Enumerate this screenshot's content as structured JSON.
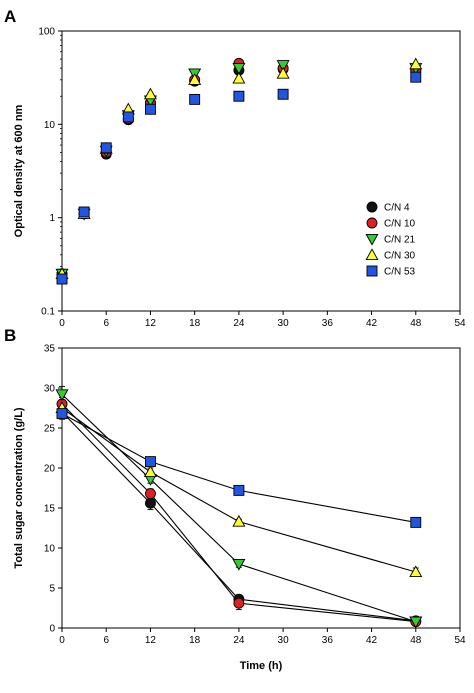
{
  "chart_data": [
    {
      "panel": "A",
      "type": "scatter",
      "title": "",
      "xlabel": "",
      "ylabel": "Optical density at 600 nm",
      "yscale": "log",
      "xlim": [
        0,
        54
      ],
      "ylim": [
        0.1,
        100
      ],
      "xticks": [
        "0",
        "6",
        "12",
        "18",
        "24",
        "30",
        "36",
        "42",
        "48",
        "54"
      ],
      "yticks": [
        "0.1",
        "1",
        "10",
        "100"
      ],
      "grid": false,
      "legend_position": "right, lower-middle",
      "x": [
        0,
        3,
        6,
        9,
        12,
        18,
        24,
        30,
        48
      ],
      "series": [
        {
          "name": "C/N 4",
          "marker": "circle",
          "color": "#111111",
          "values": [
            0.25,
            1.1,
            4.8,
            11.2,
            17,
            29,
            38,
            39,
            37
          ]
        },
        {
          "name": "C/N 10",
          "marker": "circle",
          "color": "#e02020",
          "values": [
            0.25,
            1.1,
            5.0,
            11.5,
            17,
            30,
            45,
            40,
            38
          ]
        },
        {
          "name": "C/N 21",
          "marker": "triangle-down",
          "color": "#33cc33",
          "values": [
            0.25,
            1.1,
            5.2,
            12.5,
            18,
            35,
            40,
            43,
            40
          ]
        },
        {
          "name": "C/N 30",
          "marker": "triangle-up",
          "color": "#ffff33",
          "values": [
            0.25,
            1.1,
            5.5,
            14.5,
            21,
            30,
            31,
            35,
            44
          ]
        },
        {
          "name": "C/N 53",
          "marker": "square",
          "color": "#2255e0",
          "values": [
            0.22,
            1.15,
            5.6,
            12.0,
            14.5,
            18.5,
            20,
            21,
            32
          ]
        }
      ]
    },
    {
      "panel": "B",
      "type": "line",
      "title": "",
      "xlabel": "Time (h)",
      "ylabel": "Total sugar concentration (g/L)",
      "xlim": [
        0,
        54
      ],
      "ylim": [
        0,
        35
      ],
      "xticks": [
        "0",
        "6",
        "12",
        "18",
        "24",
        "30",
        "36",
        "42",
        "48",
        "54"
      ],
      "yticks": [
        "0",
        "5",
        "10",
        "15",
        "20",
        "25",
        "30",
        "35"
      ],
      "grid": false,
      "x": [
        0,
        12,
        24,
        48
      ],
      "series": [
        {
          "name": "C/N 4",
          "marker": "circle",
          "color": "#111111",
          "values": [
            27.0,
            15.6,
            3.6,
            0.9
          ],
          "errors": [
            0.8,
            0.8,
            0.5,
            0.5
          ]
        },
        {
          "name": "C/N 10",
          "marker": "circle",
          "color": "#e02020",
          "values": [
            28.0,
            16.8,
            3.1,
            0.8
          ],
          "errors": [
            0.8,
            0.6,
            0.8,
            0.4
          ]
        },
        {
          "name": "C/N 21",
          "marker": "triangle-down",
          "color": "#33cc33",
          "values": [
            29.2,
            18.6,
            8.0,
            0.8
          ],
          "errors": [
            1.0,
            0.5,
            0.4,
            0.3
          ]
        },
        {
          "name": "C/N 30",
          "marker": "triangle-up",
          "color": "#ffff33",
          "values": [
            27.5,
            19.5,
            13.3,
            7.0
          ],
          "errors": [
            0.6,
            0.5,
            0.3,
            0.5
          ]
        },
        {
          "name": "C/N 53",
          "marker": "square",
          "color": "#2255e0",
          "values": [
            26.8,
            20.8,
            17.2,
            13.2
          ],
          "errors": [
            0.7,
            0.3,
            0.5,
            0.3
          ]
        }
      ]
    }
  ]
}
